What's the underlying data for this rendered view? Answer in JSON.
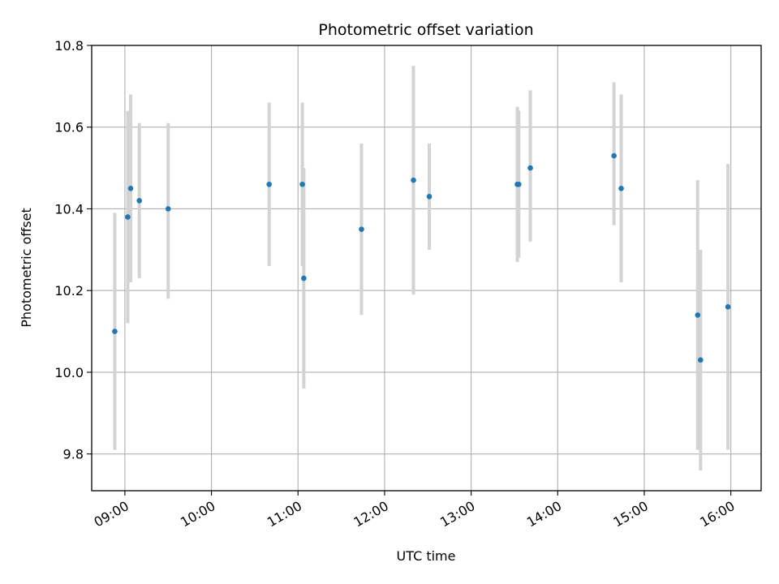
{
  "chart_data": {
    "type": "scatter",
    "title": "Photometric offset variation",
    "xlabel": "UTC time",
    "ylabel": "Photometric offset",
    "x_tick_labels": [
      "09:00",
      "10:00",
      "11:00",
      "12:00",
      "13:00",
      "14:00",
      "15:00",
      "16:00"
    ],
    "y_tick_labels": [
      "9.8",
      "10.0",
      "10.2",
      "10.4",
      "10.6",
      "10.8"
    ],
    "xlim": [
      "08:37",
      "16:21"
    ],
    "ylim": [
      9.71,
      10.8
    ],
    "grid": true,
    "marker_color": "#1f77b4",
    "errorbar_color": "#d3d3d3",
    "points": [
      {
        "x": "08:53",
        "y": 10.1,
        "yerr_low": 9.81,
        "yerr_high": 10.39
      },
      {
        "x": "09:02",
        "y": 10.38,
        "yerr_low": 10.12,
        "yerr_high": 10.64
      },
      {
        "x": "09:04",
        "y": 10.45,
        "yerr_low": 10.22,
        "yerr_high": 10.68
      },
      {
        "x": "09:10",
        "y": 10.42,
        "yerr_low": 10.23,
        "yerr_high": 10.61
      },
      {
        "x": "09:30",
        "y": 10.4,
        "yerr_low": 10.18,
        "yerr_high": 10.61
      },
      {
        "x": "10:40",
        "y": 10.46,
        "yerr_low": 10.26,
        "yerr_high": 10.66
      },
      {
        "x": "11:03",
        "y": 10.46,
        "yerr_low": 10.26,
        "yerr_high": 10.66
      },
      {
        "x": "11:04",
        "y": 10.23,
        "yerr_low": 9.96,
        "yerr_high": 10.5
      },
      {
        "x": "11:44",
        "y": 10.35,
        "yerr_low": 10.14,
        "yerr_high": 10.56
      },
      {
        "x": "12:20",
        "y": 10.47,
        "yerr_low": 10.19,
        "yerr_high": 10.75
      },
      {
        "x": "12:31",
        "y": 10.43,
        "yerr_low": 10.3,
        "yerr_high": 10.56
      },
      {
        "x": "13:32",
        "y": 10.46,
        "yerr_low": 10.27,
        "yerr_high": 10.65
      },
      {
        "x": "13:33",
        "y": 10.46,
        "yerr_low": 10.28,
        "yerr_high": 10.64
      },
      {
        "x": "13:41",
        "y": 10.5,
        "yerr_low": 10.32,
        "yerr_high": 10.69
      },
      {
        "x": "14:39",
        "y": 10.53,
        "yerr_low": 10.36,
        "yerr_high": 10.71
      },
      {
        "x": "14:44",
        "y": 10.45,
        "yerr_low": 10.22,
        "yerr_high": 10.68
      },
      {
        "x": "15:37",
        "y": 10.14,
        "yerr_low": 9.81,
        "yerr_high": 10.47
      },
      {
        "x": "15:39",
        "y": 10.03,
        "yerr_low": 9.76,
        "yerr_high": 10.3
      },
      {
        "x": "15:58",
        "y": 10.16,
        "yerr_low": 9.81,
        "yerr_high": 10.51
      }
    ]
  }
}
